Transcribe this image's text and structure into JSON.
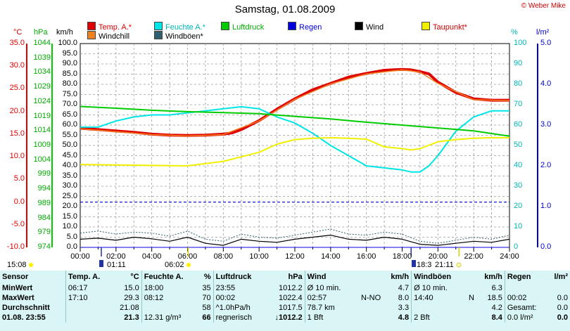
{
  "title": "Samstag, 01.08.2009",
  "copyright": "© Weber Mike",
  "legend": [
    {
      "label": "Temp. A.*",
      "color": "#e00000"
    },
    {
      "label": "Feuchte A.*",
      "color": "#00e5e5"
    },
    {
      "label": "Luftdruck",
      "color": "#00cc00"
    },
    {
      "label": "Regen",
      "color": "#0000dd"
    },
    {
      "label": "Wind",
      "color": "#000000"
    },
    {
      "label": "Taupunkt*",
      "color": "#f0f000"
    },
    {
      "label": "Windchill",
      "color": "#f08020"
    },
    {
      "label": "Windböen*",
      "color": "#2f5f6f"
    }
  ],
  "axis_units": {
    "temp": "°C",
    "pressure": "hPa",
    "wind": "km/h",
    "humidity": "%",
    "rain": "l/m²"
  },
  "axis_ticks": {
    "temp": [
      "35.0",
      "30.0",
      "25.0",
      "20.0",
      "15.0",
      "10.0",
      "5.0",
      "0.0",
      "-5.0",
      "-10.0"
    ],
    "pressure": [
      "1044",
      "1039",
      "1034",
      "1029",
      "1024",
      "1019",
      "1014",
      "1009",
      "1004",
      "999",
      "994",
      "989",
      "984",
      "979",
      "974"
    ],
    "wind": [
      "100.0",
      "95.0",
      "90.0",
      "85.0",
      "80.0",
      "75.0",
      "70.0",
      "65.0",
      "60.0",
      "55.0",
      "50.0",
      "45.0",
      "40.0",
      "35.0",
      "30.0",
      "25.0",
      "20.0",
      "15.0",
      "10.0",
      "5.0",
      "0.0"
    ],
    "humidity": [
      "100",
      "90",
      "80",
      "70",
      "60",
      "50",
      "40",
      "30",
      "20",
      "10",
      "0"
    ],
    "rain": [
      "5.0",
      "4.0",
      "3.0",
      "2.0",
      "1.0",
      "0.0"
    ],
    "time": [
      "00:00",
      "02:00",
      "04:00",
      "06:00",
      "08:00",
      "10:00",
      "12:00",
      "14:00",
      "16:00",
      "18:00",
      "20:00",
      "22:00",
      "24:00"
    ]
  },
  "sun": {
    "sunrise_label": "06:02",
    "sunset_label": "21:11",
    "moon_label": "15:08",
    "moonrise_label": "01:11",
    "moonset_label": "18:3"
  },
  "chart_data": {
    "type": "line",
    "title": "Samstag, 01.08.2009",
    "x_unit": "hours",
    "xlim": [
      0,
      24
    ],
    "series": [
      {
        "name": "Temp. A.*",
        "axis": "temp",
        "color": "#e00000",
        "x": [
          0,
          1,
          2,
          3,
          4,
          5,
          6,
          7,
          8,
          8.5,
          9,
          9.5,
          10,
          11,
          12,
          13,
          14,
          15,
          16,
          17,
          18,
          18.5,
          19,
          19.5,
          20,
          21,
          22,
          23,
          24
        ],
        "y": [
          16.3,
          16.0,
          15.7,
          15.4,
          15.0,
          14.8,
          14.7,
          14.8,
          15.0,
          15.3,
          16.0,
          17.0,
          18.0,
          20.5,
          22.8,
          24.8,
          26.2,
          27.6,
          28.4,
          29.1,
          29.3,
          29.2,
          28.8,
          28.3,
          26.5,
          24.2,
          22.8,
          22.5,
          22.5
        ]
      },
      {
        "name": "Windchill",
        "axis": "temp",
        "color": "#f08020",
        "x": [
          0,
          4,
          6,
          8,
          10,
          12,
          14,
          16,
          18,
          19,
          20,
          22,
          24
        ],
        "y": [
          16.2,
          14.9,
          14.6,
          14.9,
          17.9,
          22.7,
          26.1,
          28.3,
          29.2,
          28.7,
          26.2,
          22.6,
          22.4
        ]
      },
      {
        "name": "Feuchte A.*",
        "axis": "humidity",
        "color": "#00e5e5",
        "x": [
          0,
          1,
          2,
          3,
          4,
          5,
          6,
          7,
          8,
          9,
          10,
          11,
          12,
          13,
          14,
          15,
          16,
          17,
          18,
          18.5,
          19,
          19.5,
          20,
          20.5,
          21,
          22,
          23,
          24
        ],
        "y": [
          59,
          59,
          62,
          64,
          65,
          65,
          66,
          67,
          68,
          69,
          68,
          64,
          61,
          56,
          50,
          45,
          40,
          39,
          38,
          37,
          37,
          40,
          45,
          51,
          57,
          64,
          67,
          67
        ]
      },
      {
        "name": "Luftdruck",
        "axis": "pressure",
        "color": "#00cc00",
        "x": [
          0,
          2,
          4,
          6,
          8,
          10,
          12,
          14,
          16,
          18,
          20,
          22,
          24
        ],
        "y": [
          1022.4,
          1021.8,
          1021.1,
          1020.6,
          1020.3,
          1019.9,
          1019.0,
          1018.1,
          1017.0,
          1016.0,
          1015.0,
          1014.0,
          1012.2
        ]
      },
      {
        "name": "Taupunkt*",
        "axis": "temp",
        "color": "#f0f000",
        "x": [
          0,
          2,
          4,
          6,
          8,
          10,
          11,
          12,
          13,
          14,
          15,
          16,
          17,
          18,
          18.5,
          19,
          20,
          21,
          22,
          23,
          24
        ],
        "y": [
          8.3,
          8.2,
          8.1,
          8.0,
          9.0,
          11.0,
          12.8,
          13.8,
          14.1,
          14.2,
          14.1,
          13.9,
          12.2,
          11.8,
          11.5,
          11.8,
          13.3,
          13.8,
          14.1,
          14.2,
          14.2
        ]
      },
      {
        "name": "Wind",
        "axis": "wind",
        "color": "#000000",
        "x": [
          0,
          1,
          2,
          3,
          4,
          5,
          6,
          7,
          8,
          9,
          10,
          11,
          12,
          13,
          14,
          15,
          16,
          17,
          18,
          19,
          20,
          21,
          22,
          23,
          24
        ],
        "y": [
          4.0,
          4.5,
          3.5,
          5.0,
          4.2,
          3.0,
          5.0,
          2.0,
          1.0,
          4.0,
          3.0,
          2.5,
          4.0,
          5.0,
          6.0,
          4.0,
          3.5,
          5.0,
          4.0,
          1.5,
          1.0,
          2.0,
          3.0,
          2.5,
          4.0
        ]
      },
      {
        "name": "Windböen*",
        "axis": "wind",
        "color": "#2f5f6f",
        "x": [
          0,
          1,
          2,
          3,
          4,
          5,
          6,
          7,
          8,
          9,
          10,
          11,
          12,
          13,
          14,
          15,
          16,
          17,
          18,
          19,
          20,
          21,
          22,
          23,
          24
        ],
        "y": [
          7.0,
          8.0,
          6.5,
          7.5,
          7.0,
          5.5,
          8.0,
          4.0,
          3.0,
          6.5,
          5.0,
          4.5,
          6.0,
          7.5,
          9.0,
          6.5,
          6.0,
          7.5,
          6.5,
          3.0,
          2.0,
          3.5,
          5.0,
          4.0,
          6.0
        ]
      },
      {
        "name": "Regen",
        "axis": "rain",
        "color": "#0000dd",
        "x": [
          0,
          24
        ],
        "y": [
          0.0,
          0.0
        ]
      }
    ],
    "reference_line": {
      "axis": "temp",
      "value": 0.0,
      "color": "#0000cc",
      "style": "dashed"
    },
    "axes": {
      "temp": {
        "label": "°C",
        "ylim": [
          -10,
          35
        ]
      },
      "pressure": {
        "label": "hPa",
        "ylim": [
          974,
          1044
        ]
      },
      "wind": {
        "label": "km/h",
        "ylim": [
          0,
          100
        ]
      },
      "humidity": {
        "label": "%",
        "ylim": [
          0,
          100
        ]
      },
      "rain": {
        "label": "l/m²",
        "ylim": [
          0,
          5
        ]
      }
    },
    "grid": true
  },
  "stats": {
    "headers": [
      "Sensor",
      "Temp. A.",
      "°C",
      "Feuchte A.",
      "%",
      "Luftdruck",
      "hPa",
      "Wind",
      "km/h",
      "Windböen",
      "km/h",
      "Regen",
      "l/m²"
    ],
    "rows": [
      {
        "label": "MinWert",
        "t_time": "06:17",
        "t_val": "15.0",
        "h_time": "18:00",
        "h_val": "35",
        "p_time": "23:55",
        "p_val": "1012.2",
        "w_a": "Ø 10 min.",
        "w_b": "4.7",
        "g_a": "Ø 10 min.",
        "g_b": "6.3",
        "r_a": "",
        "r_b": ""
      },
      {
        "label": "MaxWert",
        "t_time": "17:10",
        "t_val": "29.3",
        "h_time": "08:12",
        "h_val": "70",
        "p_time": "00:02",
        "p_val": "1022.4",
        "w_a": "02:57",
        "w_dir": "N-NO",
        "w_b": "8.0",
        "g_a": "14:40",
        "g_dir": "N",
        "g_b": "18.5",
        "r_a": "00:02",
        "r_b": "0.0"
      },
      {
        "label": "Durchschnitt",
        "t_time": "",
        "t_val": "21.08",
        "h_time": "",
        "h_val": "58",
        "p_time": "^1.0hPa/h",
        "p_val": "1017.5",
        "w_a": "78.7 km",
        "w_b": "3.3",
        "g_a": "",
        "g_b": "4.2",
        "r_a": "Gesamt:",
        "r_b": "0.0"
      },
      {
        "label": "01.08. 23:55",
        "t_time": "",
        "t_val": "21.3",
        "h_time": "12.31 g/m³",
        "h_val": "66",
        "p_time": "regnerisch",
        "p_val": "↓1012.2",
        "w_a": "1 Bft",
        "w_b": "4.8",
        "g_a": "2 Bft",
        "g_b": "8.4",
        "r_a": "0.0 l/m²",
        "r_b": "0.0"
      }
    ]
  }
}
